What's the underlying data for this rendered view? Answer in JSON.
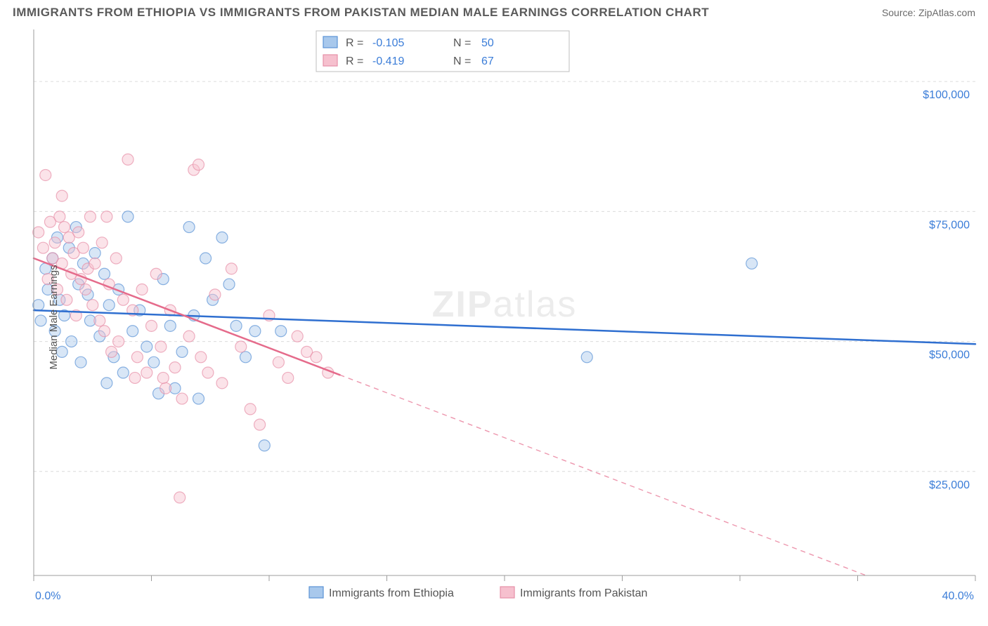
{
  "title": "IMMIGRANTS FROM ETHIOPIA VS IMMIGRANTS FROM PAKISTAN MEDIAN MALE EARNINGS CORRELATION CHART",
  "source": "Source: ZipAtlas.com",
  "yaxis_label": "Median Male Earnings",
  "watermark": "ZIPatlas",
  "chart": {
    "type": "scatter",
    "background_color": "#ffffff",
    "grid_color": "#dcdcdc",
    "axis_color": "#9c9c9c",
    "tick_label_color": "#3b7dd8",
    "xlim": [
      0,
      40
    ],
    "ylim": [
      5000,
      110000
    ],
    "x_ticks": [
      0,
      5,
      10,
      15,
      20,
      25,
      30,
      35,
      40
    ],
    "x_tick_labels": {
      "0": "0.0%",
      "40": "40.0%"
    },
    "y_gridlines": [
      25000,
      50000,
      75000,
      100000
    ],
    "y_tick_labels": {
      "25000": "$25,000",
      "50000": "$50,000",
      "75000": "$75,000",
      "100000": "$100,000"
    },
    "marker_radius": 8,
    "marker_opacity": 0.45,
    "line_width": 2.5
  },
  "series": [
    {
      "name": "Immigrants from Ethiopia",
      "fill_color": "#a8c8ec",
      "stroke_color": "#5b93d6",
      "line_color": "#2f6fd0",
      "R": "-0.105",
      "N": "50",
      "trend": {
        "x1": 0,
        "y1": 56000,
        "x2": 40,
        "y2": 49500,
        "solid_until_x": 40
      },
      "points": [
        [
          0.2,
          57000
        ],
        [
          0.3,
          54000
        ],
        [
          0.5,
          64000
        ],
        [
          0.6,
          60000
        ],
        [
          0.8,
          66000
        ],
        [
          0.9,
          52000
        ],
        [
          1.0,
          70000
        ],
        [
          1.1,
          58000
        ],
        [
          1.2,
          48000
        ],
        [
          1.3,
          55000
        ],
        [
          1.5,
          68000
        ],
        [
          1.6,
          50000
        ],
        [
          1.8,
          72000
        ],
        [
          1.9,
          61000
        ],
        [
          2.0,
          46000
        ],
        [
          2.1,
          65000
        ],
        [
          2.3,
          59000
        ],
        [
          2.4,
          54000
        ],
        [
          2.6,
          67000
        ],
        [
          2.8,
          51000
        ],
        [
          3.0,
          63000
        ],
        [
          3.1,
          42000
        ],
        [
          3.2,
          57000
        ],
        [
          3.4,
          47000
        ],
        [
          3.6,
          60000
        ],
        [
          3.8,
          44000
        ],
        [
          4.0,
          74000
        ],
        [
          4.2,
          52000
        ],
        [
          4.5,
          56000
        ],
        [
          4.8,
          49000
        ],
        [
          5.1,
          46000
        ],
        [
          5.3,
          40000
        ],
        [
          5.5,
          62000
        ],
        [
          5.8,
          53000
        ],
        [
          6.0,
          41000
        ],
        [
          6.3,
          48000
        ],
        [
          6.6,
          72000
        ],
        [
          6.8,
          55000
        ],
        [
          7.0,
          39000
        ],
        [
          7.3,
          66000
        ],
        [
          7.6,
          58000
        ],
        [
          8.0,
          70000
        ],
        [
          8.3,
          61000
        ],
        [
          8.6,
          53000
        ],
        [
          9.0,
          47000
        ],
        [
          9.4,
          52000
        ],
        [
          9.8,
          30000
        ],
        [
          10.5,
          52000
        ],
        [
          23.5,
          47000
        ],
        [
          30.5,
          65000
        ]
      ]
    },
    {
      "name": "Immigrants from Pakistan",
      "fill_color": "#f6c0ce",
      "stroke_color": "#e790a8",
      "line_color": "#e56b8b",
      "R": "-0.419",
      "N": "67",
      "trend": {
        "x1": 0,
        "y1": 66000,
        "x2": 40,
        "y2": -3000,
        "solid_until_x": 13
      },
      "points": [
        [
          0.2,
          71000
        ],
        [
          0.4,
          68000
        ],
        [
          0.5,
          82000
        ],
        [
          0.6,
          62000
        ],
        [
          0.7,
          73000
        ],
        [
          0.8,
          66000
        ],
        [
          0.9,
          69000
        ],
        [
          1.0,
          60000
        ],
        [
          1.1,
          74000
        ],
        [
          1.2,
          65000
        ],
        [
          1.3,
          72000
        ],
        [
          1.4,
          58000
        ],
        [
          1.5,
          70000
        ],
        [
          1.6,
          63000
        ],
        [
          1.7,
          67000
        ],
        [
          1.8,
          55000
        ],
        [
          1.9,
          71000
        ],
        [
          2.0,
          62000
        ],
        [
          2.1,
          68000
        ],
        [
          2.2,
          60000
        ],
        [
          2.3,
          64000
        ],
        [
          2.5,
          57000
        ],
        [
          2.6,
          65000
        ],
        [
          2.8,
          54000
        ],
        [
          2.9,
          69000
        ],
        [
          3.0,
          52000
        ],
        [
          3.2,
          61000
        ],
        [
          3.3,
          48000
        ],
        [
          3.5,
          66000
        ],
        [
          3.6,
          50000
        ],
        [
          3.8,
          58000
        ],
        [
          4.0,
          85000
        ],
        [
          4.2,
          56000
        ],
        [
          4.4,
          47000
        ],
        [
          4.6,
          60000
        ],
        [
          4.8,
          44000
        ],
        [
          5.0,
          53000
        ],
        [
          5.2,
          63000
        ],
        [
          5.4,
          49000
        ],
        [
          5.6,
          41000
        ],
        [
          5.8,
          56000
        ],
        [
          6.0,
          45000
        ],
        [
          6.3,
          39000
        ],
        [
          6.6,
          51000
        ],
        [
          6.8,
          83000
        ],
        [
          7.0,
          84000
        ],
        [
          7.1,
          47000
        ],
        [
          7.4,
          44000
        ],
        [
          7.7,
          59000
        ],
        [
          8.0,
          42000
        ],
        [
          8.4,
          64000
        ],
        [
          8.8,
          49000
        ],
        [
          9.2,
          37000
        ],
        [
          9.6,
          34000
        ],
        [
          10.0,
          55000
        ],
        [
          10.4,
          46000
        ],
        [
          10.8,
          43000
        ],
        [
          11.2,
          51000
        ],
        [
          11.6,
          48000
        ],
        [
          12.0,
          47000
        ],
        [
          12.5,
          44000
        ],
        [
          6.2,
          20000
        ],
        [
          5.5,
          43000
        ],
        [
          4.3,
          43000
        ],
        [
          3.1,
          74000
        ],
        [
          2.4,
          74000
        ],
        [
          1.2,
          78000
        ]
      ]
    }
  ],
  "legend_stats": {
    "R_label": "R =",
    "N_label": "N ="
  },
  "bottom_legend": [
    {
      "label": "Immigrants from Ethiopia",
      "fill": "#a8c8ec",
      "stroke": "#5b93d6"
    },
    {
      "label": "Immigrants from Pakistan",
      "fill": "#f6c0ce",
      "stroke": "#e790a8"
    }
  ]
}
